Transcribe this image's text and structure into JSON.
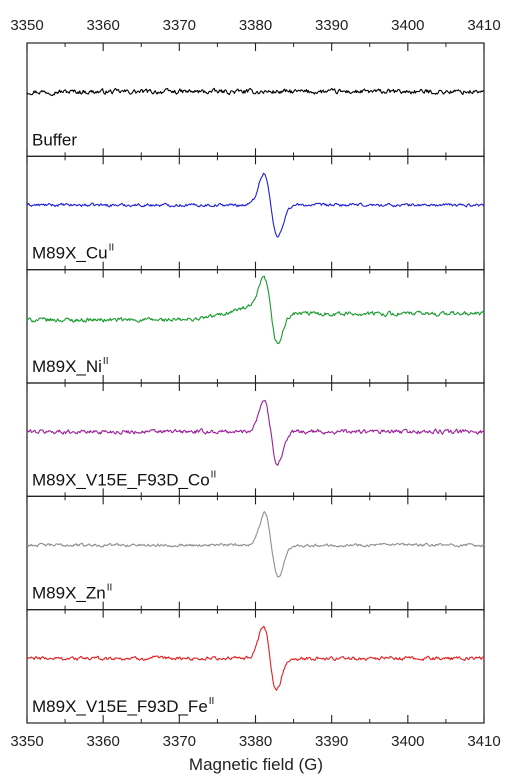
{
  "chart_data": {
    "type": "line",
    "title": "",
    "xlabel": "Magnetic field (G)",
    "ylabel": "",
    "xlim": [
      3350,
      3410
    ],
    "xticks": [
      3350,
      3360,
      3370,
      3380,
      3390,
      3400,
      3410
    ],
    "xtick_labels": [
      "3350",
      "3360",
      "3370",
      "3380",
      "3390",
      "3400",
      "3410"
    ],
    "tick_labels_top": true,
    "tick_labels_bottom": true,
    "grid": false,
    "layout": "stacked panels, shared x-axis",
    "panels": [
      {
        "label": "Buffer",
        "superscript": "",
        "color": "#000000",
        "signal": {
          "type": "flat",
          "baseline": 0.0,
          "noise": 0.08
        }
      },
      {
        "label": "M89X_Cu",
        "superscript": "II",
        "color": "#1f1fd6",
        "signal": {
          "type": "derivative",
          "center": 3382.0,
          "width": 0.9,
          "amplitude": 1.0,
          "baseline": 0.0,
          "noise": 0.05
        }
      },
      {
        "label": "M89X_Ni",
        "superscript": "II",
        "color": "#1a9a2e",
        "signal": {
          "type": "derivative",
          "center": 3382.0,
          "width": 0.9,
          "amplitude": 1.0,
          "baseline_start": -0.05,
          "baseline_end": 0.15,
          "broad_bump": 0.18,
          "noise": 0.07
        }
      },
      {
        "label": "M89X_V15E_F93D_Co",
        "superscript": "II",
        "color": "#9a1f9a",
        "signal": {
          "type": "derivative",
          "center": 3382.0,
          "width": 0.9,
          "amplitude": 1.0,
          "baseline": 0.0,
          "noise": 0.07
        }
      },
      {
        "label": "M89X_Zn",
        "superscript": "II",
        "color": "#8f8f8f",
        "signal": {
          "type": "derivative",
          "center": 3382.1,
          "width": 0.9,
          "amplitude": 1.0,
          "baseline": 0.0,
          "noise": 0.05
        }
      },
      {
        "label": "M89X_V15E_F93D_Fe",
        "superscript": "II",
        "color": "#e02020",
        "signal": {
          "type": "derivative",
          "center": 3381.9,
          "width": 0.85,
          "amplitude": 1.0,
          "baseline": 0.0,
          "noise": 0.06
        }
      }
    ]
  }
}
